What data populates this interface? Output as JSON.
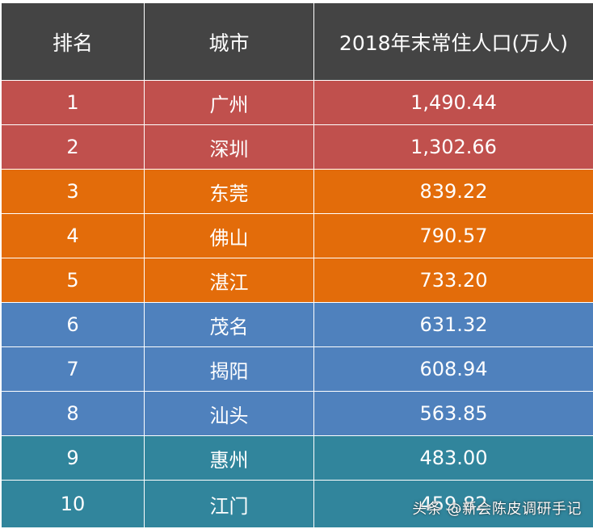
{
  "chart_data": {
    "type": "table",
    "columns": [
      "排名",
      "城市",
      "2018年末常住人口(万人)"
    ],
    "rows": [
      {
        "rank": "1",
        "city": "广州",
        "population": "1,490.44",
        "color": "#c0504d"
      },
      {
        "rank": "2",
        "city": "深圳",
        "population": "1,302.66",
        "color": "#c0504d"
      },
      {
        "rank": "3",
        "city": "东莞",
        "population": "839.22",
        "color": "#e36c0a"
      },
      {
        "rank": "4",
        "city": "佛山",
        "population": "790.57",
        "color": "#e36c0a"
      },
      {
        "rank": "5",
        "city": "湛江",
        "population": "733.20",
        "color": "#e36c0a"
      },
      {
        "rank": "6",
        "city": "茂名",
        "population": "631.32",
        "color": "#4f81bd"
      },
      {
        "rank": "7",
        "city": "揭阳",
        "population": "608.94",
        "color": "#4f81bd"
      },
      {
        "rank": "8",
        "city": "汕头",
        "population": "563.85",
        "color": "#4f81bd"
      },
      {
        "rank": "9",
        "city": "惠州",
        "population": "483.00",
        "color": "#31859c"
      },
      {
        "rank": "10",
        "city": "江门",
        "population": "459.82",
        "color": "#31859c"
      }
    ]
  },
  "header_color": "#444444",
  "watermark": {
    "text": "头条 @新会陈皮调研手记"
  }
}
